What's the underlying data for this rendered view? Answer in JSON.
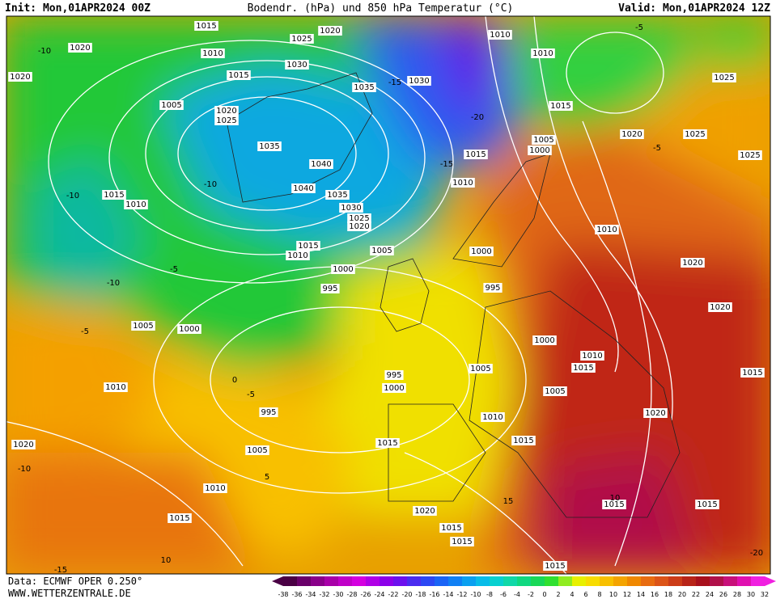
{
  "header": {
    "init": "Init: Mon,01APR2024 00Z",
    "title": "Bodendr. (hPa) und 850 hPa Temperatur (°C)",
    "valid": "Valid: Mon,01APR2024 12Z"
  },
  "isobar_labels": [
    1015,
    1025,
    1020,
    1010,
    1020,
    1020,
    1015,
    1030,
    1035,
    1030,
    1010,
    1010,
    1015,
    1025,
    1005,
    1020,
    1025,
    1035,
    1040,
    1040,
    1035,
    1030,
    1025,
    1020,
    1015,
    1010,
    1000,
    1005,
    1020,
    1025,
    1025,
    1015,
    1010,
    1010,
    1015,
    1010,
    1005,
    1000,
    1020,
    1000,
    995,
    995,
    1020,
    1005,
    1000,
    1000,
    1010,
    1015,
    1015,
    1005,
    995,
    1000,
    1010,
    1005,
    995,
    1010,
    1020,
    1015,
    1015,
    1020,
    1005,
    1010,
    1015,
    1020,
    1015,
    1015,
    1015,
    1015,
    1015
  ],
  "temperature_labels": [
    -10,
    -10,
    -5,
    -5,
    -10,
    -15,
    -20,
    0,
    -5,
    5,
    10,
    -15,
    -10,
    15,
    -5,
    -5,
    -10,
    -15,
    10,
    -20
  ],
  "footer": {
    "data": "Data: ECMWF OPER 0.250°",
    "site": "WWW.WETTERZENTRALE.DE"
  },
  "colorbar": {
    "ticks": [
      -38,
      -36,
      -34,
      -32,
      -30,
      -28,
      -26,
      -24,
      -22,
      -20,
      -18,
      -16,
      -14,
      -12,
      -10,
      -8,
      -6,
      -4,
      -2,
      0,
      2,
      4,
      6,
      8,
      10,
      12,
      14,
      16,
      18,
      20,
      22,
      24,
      26,
      28,
      30,
      32
    ],
    "colors": [
      "#4a0044",
      "#6a006a",
      "#8a008a",
      "#a800a8",
      "#c000c8",
      "#d400e0",
      "#b000e6",
      "#8c00ea",
      "#6c10ee",
      "#4a2cf0",
      "#2c48f4",
      "#1a64f6",
      "#1080f4",
      "#0aa0f0",
      "#08bce8",
      "#08d0d0",
      "#10d8a8",
      "#10d880",
      "#18d858",
      "#30e030",
      "#90ec20",
      "#e8f000",
      "#f8dc00",
      "#f8c000",
      "#f4a400",
      "#f08800",
      "#e86c10",
      "#dc5418",
      "#cc3c18",
      "#b82418",
      "#a8101c",
      "#b0104a",
      "#c8107a",
      "#e010b0",
      "#f020e0"
    ]
  }
}
